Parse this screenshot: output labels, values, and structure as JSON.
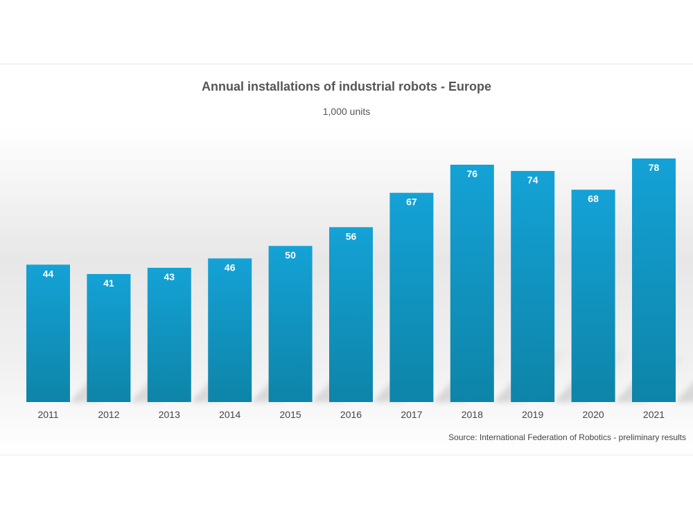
{
  "chart_data": {
    "type": "bar",
    "title": "Annual installations of industrial robots - Europe",
    "subtitle": "1,000 units",
    "categories": [
      "2011",
      "2012",
      "2013",
      "2014",
      "2015",
      "2016",
      "2017",
      "2018",
      "2019",
      "2020",
      "2021"
    ],
    "values": [
      44,
      41,
      43,
      46,
      50,
      56,
      67,
      76,
      74,
      68,
      78
    ],
    "data_labels": [
      "44",
      "41",
      "43",
      "46",
      "50",
      "56",
      "67",
      "76",
      "74",
      "68",
      "78"
    ],
    "xlabel": "",
    "ylabel": "",
    "ylim": [
      0,
      78
    ],
    "grid": false,
    "legend": "none",
    "bar_color_top": "#14a2d6",
    "bar_color_bottom": "#0e84a8",
    "source": "Source: International Federation of Robotics - preliminary results"
  }
}
